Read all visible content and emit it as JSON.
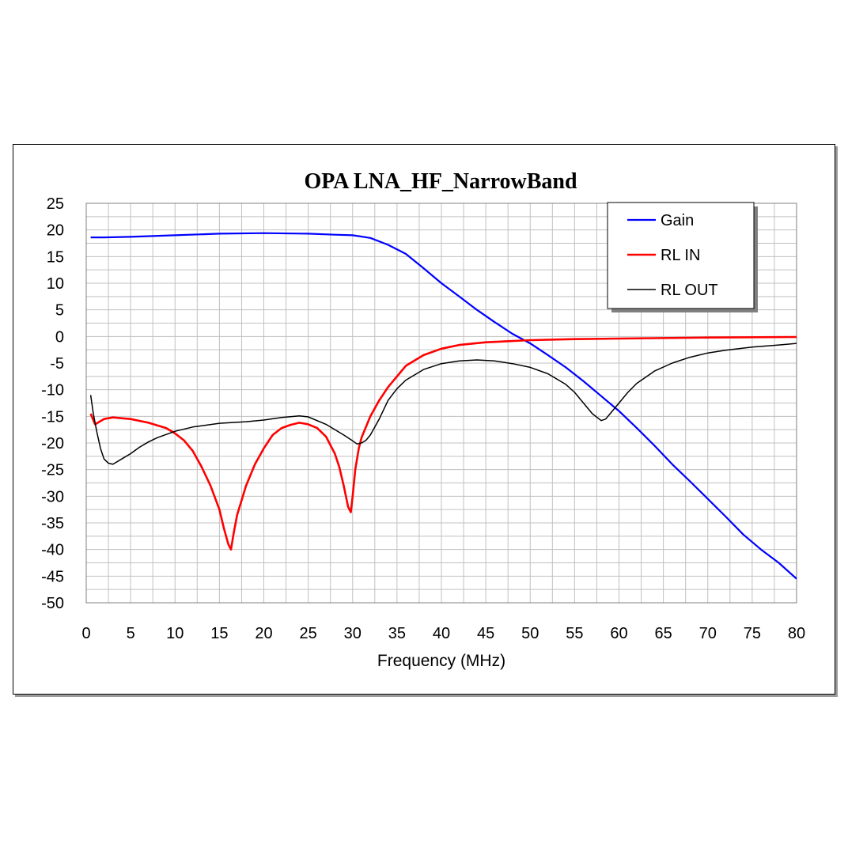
{
  "chart_data": {
    "type": "line",
    "title": "OPA LNA_HF_NarrowBand",
    "xlabel": "Frequency (MHz)",
    "ylabel": "",
    "xlim": [
      0,
      80
    ],
    "ylim": [
      -50,
      25
    ],
    "x_ticks": [
      0,
      5,
      10,
      15,
      20,
      25,
      30,
      35,
      40,
      45,
      50,
      55,
      60,
      65,
      70,
      75,
      80
    ],
    "y_ticks": [
      25,
      20,
      15,
      10,
      5,
      0,
      -5,
      -10,
      -15,
      -20,
      -25,
      -30,
      -35,
      -40,
      -45,
      -50
    ],
    "grid": true,
    "legend_position": "top-right",
    "series": [
      {
        "name": "Gain",
        "color": "#0000ff",
        "x": [
          0.5,
          2,
          5,
          10,
          15,
          20,
          25,
          28,
          30,
          32,
          34,
          36,
          38,
          40,
          42,
          44,
          46,
          48,
          50,
          52,
          54,
          56,
          58,
          60,
          62,
          64,
          66,
          68,
          70,
          72,
          74,
          76,
          78,
          80
        ],
        "y": [
          18.6,
          18.6,
          18.7,
          19.0,
          19.3,
          19.4,
          19.3,
          19.1,
          19.0,
          18.5,
          17.2,
          15.5,
          12.8,
          10.0,
          7.5,
          5.0,
          2.7,
          0.5,
          -1.3,
          -3.5,
          -5.8,
          -8.4,
          -11.2,
          -14.0,
          -17.2,
          -20.5,
          -24.0,
          -27.2,
          -30.5,
          -33.8,
          -37.2,
          -40.0,
          -42.5,
          -45.5
        ]
      },
      {
        "name": "RL IN",
        "color": "#ff0000",
        "x": [
          0.5,
          1,
          1.5,
          2,
          3,
          5,
          7,
          9,
          10,
          11,
          12,
          13,
          14,
          15,
          15.5,
          16,
          16.3,
          16.6,
          17,
          18,
          19,
          20,
          21,
          22,
          23,
          24,
          25,
          26,
          27,
          28,
          28.5,
          29,
          29.5,
          29.8,
          30,
          30.3,
          30.7,
          31,
          32,
          33,
          34,
          35,
          36,
          38,
          40,
          42,
          45,
          50,
          55,
          60,
          70,
          80
        ],
        "y": [
          -14.5,
          -16.5,
          -16.0,
          -15.5,
          -15.2,
          -15.5,
          -16.2,
          -17.2,
          -18.2,
          -19.5,
          -21.5,
          -24.5,
          -28.0,
          -32.5,
          -36.0,
          -39.0,
          -40.0,
          -37.0,
          -33.5,
          -28.0,
          -24.0,
          -21.0,
          -18.5,
          -17.2,
          -16.6,
          -16.2,
          -16.5,
          -17.2,
          -18.8,
          -22.0,
          -24.5,
          -28.0,
          -32.0,
          -33.0,
          -30.0,
          -25.0,
          -21.0,
          -19.0,
          -15.0,
          -12.0,
          -9.5,
          -7.5,
          -5.5,
          -3.5,
          -2.3,
          -1.6,
          -1.1,
          -0.7,
          -0.5,
          -0.4,
          -0.2,
          -0.1
        ]
      },
      {
        "name": "RL OUT",
        "color": "#000000",
        "x": [
          0.5,
          0.8,
          1.2,
          1.6,
          2,
          2.5,
          3,
          4,
          5,
          6,
          7,
          8,
          10,
          12,
          15,
          18,
          20,
          22,
          24,
          25,
          27,
          29,
          30,
          30.5,
          31,
          31.5,
          32,
          33,
          34,
          35,
          36,
          38,
          40,
          42,
          44,
          46,
          48,
          50,
          52,
          54,
          55,
          56,
          57,
          58,
          58.5,
          59,
          60,
          61,
          62,
          64,
          66,
          68,
          70,
          72,
          75,
          78,
          80
        ],
        "y": [
          -11.0,
          -14.5,
          -18.0,
          -21.0,
          -23.0,
          -23.8,
          -24.0,
          -23.0,
          -22.0,
          -20.8,
          -19.8,
          -19.0,
          -17.8,
          -17.0,
          -16.3,
          -16.0,
          -15.7,
          -15.2,
          -14.9,
          -15.1,
          -16.5,
          -18.5,
          -19.6,
          -20.2,
          -20.0,
          -19.5,
          -18.5,
          -15.5,
          -12.0,
          -9.8,
          -8.2,
          -6.2,
          -5.1,
          -4.6,
          -4.4,
          -4.6,
          -5.1,
          -5.8,
          -7.0,
          -9.0,
          -10.5,
          -12.5,
          -14.5,
          -15.8,
          -15.5,
          -14.5,
          -12.5,
          -10.5,
          -8.8,
          -6.5,
          -5.0,
          -3.9,
          -3.1,
          -2.6,
          -2.0,
          -1.6,
          -1.3
        ]
      }
    ]
  }
}
